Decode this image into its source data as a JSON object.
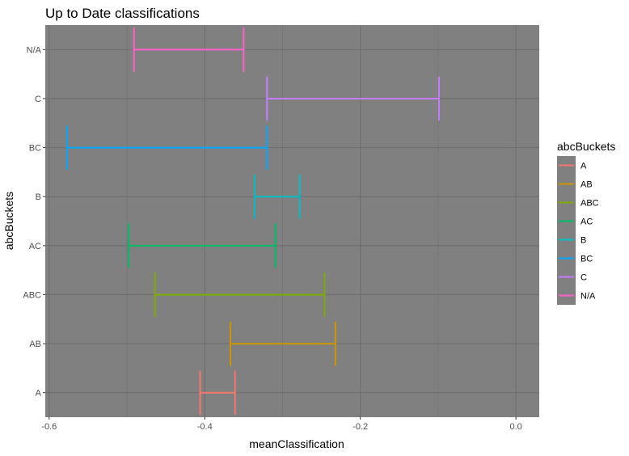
{
  "chart_data": {
    "type": "errorbar",
    "title": "Up to Date classifications",
    "xlabel": "meanClassification",
    "ylabel": "abcBuckets",
    "xlim": [
      -0.605,
      0.03
    ],
    "x_ticks": [
      -0.6,
      -0.4,
      -0.2,
      0.0
    ],
    "x_tick_labels": [
      "-0.6",
      "-0.4",
      "-0.2",
      "0.0"
    ],
    "categories": [
      "A",
      "AB",
      "ABC",
      "AC",
      "B",
      "BC",
      "C",
      "N/A"
    ],
    "series": [
      {
        "name": "A",
        "xmin": -0.406,
        "xmax": -0.361,
        "color": "#F8766D"
      },
      {
        "name": "AB",
        "xmin": -0.367,
        "xmax": -0.232,
        "color": "#CD9600"
      },
      {
        "name": "ABC",
        "xmin": -0.464,
        "xmax": -0.246,
        "color": "#7CAE00"
      },
      {
        "name": "AC",
        "xmin": -0.498,
        "xmax": -0.309,
        "color": "#00BE67"
      },
      {
        "name": "B",
        "xmin": -0.336,
        "xmax": -0.278,
        "color": "#00BFC4"
      },
      {
        "name": "BC",
        "xmin": -0.577,
        "xmax": -0.32,
        "color": "#00A9FF"
      },
      {
        "name": "C",
        "xmin": -0.32,
        "xmax": -0.099,
        "color": "#C77CFF"
      },
      {
        "name": "N/A",
        "xmin": -0.491,
        "xmax": -0.35,
        "color": "#FF61CC"
      }
    ],
    "legend": {
      "title": "abcBuckets",
      "position": "right"
    },
    "grid": true,
    "panel_background": "#808080",
    "grid_color": "#6e6e6e"
  }
}
